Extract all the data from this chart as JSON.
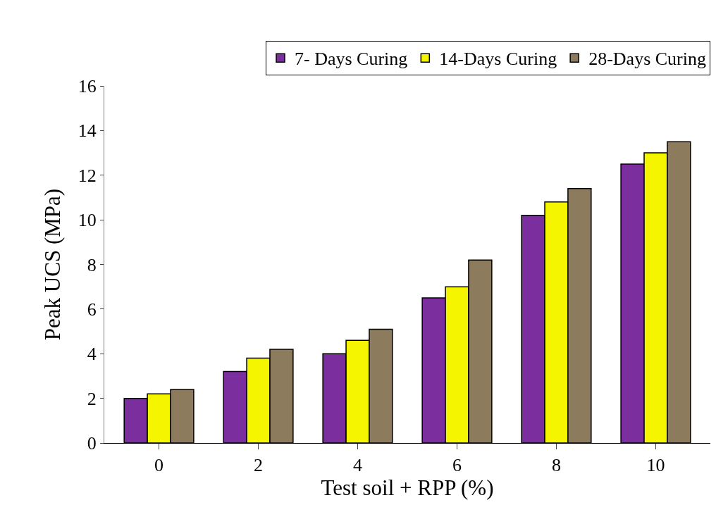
{
  "chart_data": {
    "type": "bar",
    "xlabel": "Test soil + RPP (%)",
    "ylabel": "Peak UCS (MPa)",
    "categories": [
      "0",
      "2",
      "4",
      "6",
      "8",
      "10"
    ],
    "series": [
      {
        "name": "7- Days Curing",
        "color": "#7b2f9e",
        "values": [
          2.0,
          3.2,
          4.0,
          6.5,
          10.2,
          12.5
        ]
      },
      {
        "name": "14-Days Curing",
        "color": "#f5f500",
        "values": [
          2.2,
          3.8,
          4.6,
          7.0,
          10.8,
          13.0
        ]
      },
      {
        "name": "28-Days Curing",
        "color": "#8c7b5c",
        "values": [
          2.4,
          4.2,
          5.1,
          8.2,
          11.4,
          13.5
        ]
      }
    ],
    "ylim": [
      0,
      16
    ],
    "yticks": [
      0,
      2,
      4,
      6,
      8,
      10,
      12,
      14,
      16
    ],
    "legend": "top"
  }
}
